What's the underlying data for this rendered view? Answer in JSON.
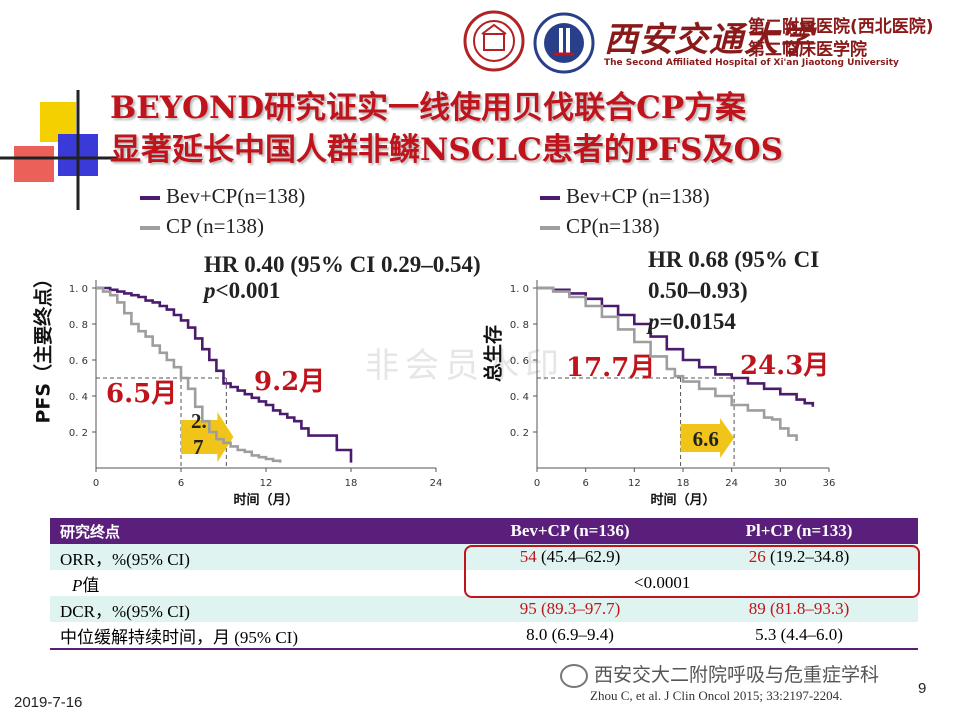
{
  "header": {
    "calligraphy": "西安交通大学",
    "hospital_line1": "第二附属医院(西北医院)",
    "hospital_line2": "第二临床医学院",
    "hospital_en": "The Second Affiliated Hospital of Xi'an Jiaotong University",
    "logo1_icon": "hospital-seal-icon",
    "logo2_icon": "university-emblem-icon"
  },
  "title": {
    "line1": "BEYOND研究证实一线使用贝伐联合CP方案",
    "line2": "显著延长中国人群非鳞NSCLC患者的PFS及OS"
  },
  "colors": {
    "bev": "#4b1c6e",
    "cp": "#9e9e9e",
    "accent": "#c0141c",
    "arrow": "#f0c419"
  },
  "watermark": "非会员水印",
  "chart_data": [
    {
      "type": "line",
      "ylabel": "PFS（主要终点）",
      "xlabel": "时间（月）",
      "xlim": [
        0,
        24
      ],
      "ylim": [
        0,
        1
      ],
      "xticks": [
        "0",
        "6",
        "12",
        "18",
        "24"
      ],
      "yticks": [
        "0. 2",
        "0. 4",
        "0. 6",
        "0. 8",
        "1. 0"
      ],
      "legend": [
        "Bev+CP(n=138)",
        "CP (n=138)"
      ],
      "hr_line1": "HR 0.40 (95% CI 0.29–0.54)",
      "p_label": "p",
      "p_value": "<0.001",
      "median_cp": "6.5月",
      "median_bev": "9.2月",
      "diff_line1": "2.",
      "diff_line2": "7",
      "series": [
        {
          "name": "Bev+CP(n=138)",
          "x": [
            0,
            1,
            1.5,
            2,
            2.5,
            3,
            3.5,
            4,
            4.5,
            5,
            5.5,
            6,
            6.5,
            7,
            7.5,
            8,
            8.5,
            9,
            9.5,
            10,
            10.5,
            11,
            11.5,
            12,
            12.5,
            13,
            13.5,
            14,
            14.5,
            15,
            16,
            17,
            17.5,
            18
          ],
          "y": [
            1,
            0.99,
            0.98,
            0.97,
            0.96,
            0.95,
            0.93,
            0.92,
            0.9,
            0.88,
            0.85,
            0.82,
            0.78,
            0.72,
            0.66,
            0.6,
            0.54,
            0.47,
            0.45,
            0.43,
            0.41,
            0.39,
            0.37,
            0.35,
            0.32,
            0.3,
            0.28,
            0.26,
            0.22,
            0.18,
            0.18,
            0.1,
            0.1,
            0.03
          ]
        },
        {
          "name": "CP (n=138)",
          "x": [
            0,
            0.5,
            1,
            1.5,
            2,
            2.5,
            3,
            3.5,
            4,
            4.5,
            5,
            5.5,
            6,
            6.5,
            7,
            7.5,
            8,
            8.5,
            9,
            9.5,
            10,
            10.5,
            11,
            11.5,
            12,
            12.5,
            13
          ],
          "y": [
            1,
            0.98,
            0.96,
            0.92,
            0.86,
            0.8,
            0.76,
            0.73,
            0.68,
            0.64,
            0.6,
            0.56,
            0.5,
            0.44,
            0.34,
            0.26,
            0.2,
            0.16,
            0.14,
            0.12,
            0.1,
            0.09,
            0.07,
            0.06,
            0.05,
            0.04,
            0.03
          ]
        }
      ]
    },
    {
      "type": "line",
      "ylabel": "总生存",
      "xlabel": "时间（月）",
      "xlim": [
        0,
        36
      ],
      "ylim": [
        0,
        1
      ],
      "xticks": [
        "0",
        "6",
        "12",
        "18",
        "24",
        "30",
        "36"
      ],
      "yticks": [
        "0. 2",
        "0. 4",
        "0. 6",
        "0. 8",
        "1. 0"
      ],
      "legend": [
        "Bev+CP (n=138)",
        "CP(n=138)"
      ],
      "hr_line1": "HR 0.68 (95% CI",
      "hr_line2": "0.50–0.93)",
      "p_label": "p",
      "p_value": "=0.0154",
      "median_cp": "17.7月",
      "median_bev": "24.3月",
      "diff_label": "6.6",
      "series": [
        {
          "name": "Bev+CP (n=138)",
          "x": [
            0,
            2,
            4,
            6,
            8,
            10,
            12,
            14,
            16,
            18,
            20,
            22,
            24,
            26,
            28,
            30,
            32,
            33,
            34
          ],
          "y": [
            1,
            0.99,
            0.97,
            0.94,
            0.9,
            0.85,
            0.8,
            0.73,
            0.66,
            0.6,
            0.56,
            0.52,
            0.5,
            0.47,
            0.44,
            0.41,
            0.38,
            0.36,
            0.34
          ]
        },
        {
          "name": "CP(n=138)",
          "x": [
            0,
            2,
            4,
            6,
            8,
            10,
            12,
            14,
            16,
            17,
            18,
            20,
            22,
            24,
            26,
            28,
            29,
            30,
            31,
            32
          ],
          "y": [
            1,
            0.98,
            0.95,
            0.9,
            0.84,
            0.77,
            0.7,
            0.62,
            0.55,
            0.51,
            0.48,
            0.44,
            0.4,
            0.35,
            0.32,
            0.28,
            0.27,
            0.22,
            0.18,
            0.15
          ]
        }
      ]
    }
  ],
  "table": {
    "headers": [
      "研究终点",
      "Bev+CP (n=136)",
      "Pl+CP (n=133)"
    ],
    "orr_label": "ORR，%(95% CI)",
    "orr_bev_main": "54",
    "orr_bev_ci": " (45.4–62.9)",
    "orr_cp_main": "26",
    "orr_cp_ci": " (19.2–34.8)",
    "p_label": "P",
    "p_label_suffix": "值",
    "p_value": "<0.0001",
    "dcr_label": "DCR，%(95% CI)",
    "dcr_bev": "95 (89.3–97.7)",
    "dcr_cp": "89 (81.8–93.3)",
    "dor_label": "中位缓解持续时间，月 (95% CI)",
    "dor_bev": "8.0  (6.9–9.4)",
    "dor_cp": "5.3  (4.4–6.0)"
  },
  "footer": {
    "date": "2019-7-16",
    "citation": "Zhou C, et al. J Clin Oncol 2015; 33:2197-2204.",
    "page": "9",
    "wechat": "西安交大二附院呼吸与危重症学科",
    "wechat_icon": "wechat-icon"
  }
}
